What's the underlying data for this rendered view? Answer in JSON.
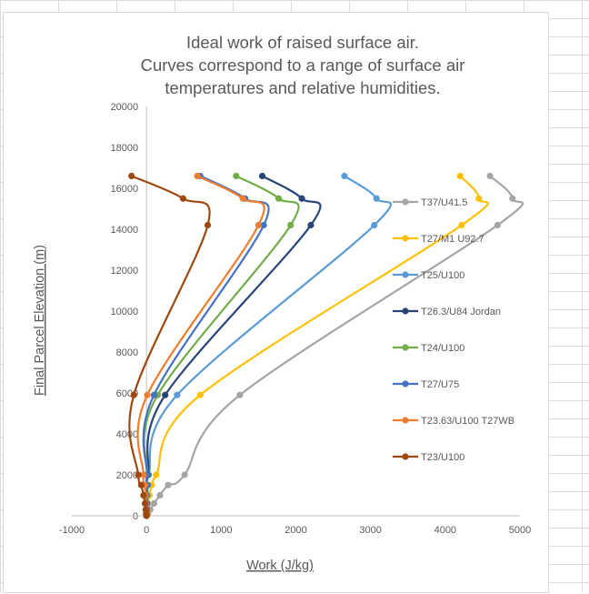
{
  "chart_data": {
    "type": "line",
    "title": [
      "Ideal work of raised surface air.",
      "Curves correspond to a range of surface air",
      "temperatures and relative humidities."
    ],
    "xlabel": "Work (J/kg)",
    "ylabel": "Final Parcel Elevation (m)",
    "xlim": [
      -1000,
      5000
    ],
    "ylim": [
      0,
      20000
    ],
    "x_ticks": [
      -1000,
      0,
      1000,
      2000,
      3000,
      4000,
      5000
    ],
    "y_ticks": [
      0,
      2000,
      4000,
      6000,
      8000,
      10000,
      12000,
      14000,
      16000,
      18000,
      20000
    ],
    "legend_position": "right",
    "series": [
      {
        "name": "T37/U41.5",
        "color": "#a5a5a5",
        "points": [
          [
            0,
            0
          ],
          [
            20,
            100
          ],
          [
            50,
            300
          ],
          [
            100,
            600
          ],
          [
            180,
            1000
          ],
          [
            290,
            1500
          ],
          [
            510,
            2000
          ],
          [
            1250,
            5900
          ],
          [
            4700,
            14200
          ],
          [
            4900,
            15500
          ],
          [
            4600,
            16600
          ]
        ]
      },
      {
        "name": "T27/M1 U92.7",
        "color": "#ffc000",
        "points": [
          [
            0,
            0
          ],
          [
            10,
            100
          ],
          [
            15,
            300
          ],
          [
            20,
            600
          ],
          [
            40,
            1000
          ],
          [
            70,
            1500
          ],
          [
            130,
            2000
          ],
          [
            720,
            5900
          ],
          [
            4220,
            14200
          ],
          [
            4450,
            15500
          ],
          [
            4200,
            16600
          ]
        ]
      },
      {
        "name": "T25/U100",
        "color": "#5b9bd5",
        "points": [
          [
            0,
            0
          ],
          [
            5,
            100
          ],
          [
            5,
            300
          ],
          [
            10,
            600
          ],
          [
            10,
            1000
          ],
          [
            20,
            1500
          ],
          [
            30,
            2000
          ],
          [
            410,
            5900
          ],
          [
            3050,
            14200
          ],
          [
            3080,
            15500
          ],
          [
            2650,
            16600
          ]
        ]
      },
      {
        "name": "T26.3/U84 Jordan",
        "color": "#264478",
        "points": [
          [
            0,
            0
          ],
          [
            0,
            100
          ],
          [
            5,
            300
          ],
          [
            5,
            600
          ],
          [
            5,
            1000
          ],
          [
            10,
            1500
          ],
          [
            20,
            2000
          ],
          [
            250,
            5900
          ],
          [
            2200,
            14200
          ],
          [
            2080,
            15500
          ],
          [
            1550,
            16600
          ]
        ]
      },
      {
        "name": "T24/U100",
        "color": "#70ad47",
        "points": [
          [
            0,
            0
          ],
          [
            0,
            100
          ],
          [
            0,
            300
          ],
          [
            0,
            600
          ],
          [
            5,
            1000
          ],
          [
            5,
            1500
          ],
          [
            10,
            2000
          ],
          [
            150,
            5900
          ],
          [
            1930,
            14200
          ],
          [
            1770,
            15500
          ],
          [
            1200,
            16600
          ]
        ]
      },
      {
        "name": "T27/U75",
        "color": "#4472c4",
        "points": [
          [
            0,
            0
          ],
          [
            0,
            100
          ],
          [
            0,
            300
          ],
          [
            0,
            600
          ],
          [
            0,
            1000
          ],
          [
            5,
            1500
          ],
          [
            5,
            2000
          ],
          [
            100,
            5900
          ],
          [
            1570,
            14200
          ],
          [
            1320,
            15500
          ],
          [
            720,
            16600
          ]
        ]
      },
      {
        "name": "T23.63/U100 T27WB",
        "color": "#ed7d31",
        "points": [
          [
            0,
            0
          ],
          [
            0,
            100
          ],
          [
            -5,
            300
          ],
          [
            -10,
            600
          ],
          [
            -15,
            1000
          ],
          [
            -20,
            1500
          ],
          [
            -40,
            2000
          ],
          [
            10,
            5900
          ],
          [
            1500,
            14200
          ],
          [
            1290,
            15500
          ],
          [
            680,
            16600
          ]
        ]
      },
      {
        "name": "T23/U100",
        "color": "#9e480e",
        "points": [
          [
            0,
            0
          ],
          [
            -5,
            100
          ],
          [
            -10,
            300
          ],
          [
            -20,
            600
          ],
          [
            -40,
            1000
          ],
          [
            -70,
            1500
          ],
          [
            -110,
            2000
          ],
          [
            -170,
            5900
          ],
          [
            820,
            14200
          ],
          [
            490,
            15500
          ],
          [
            -200,
            16600
          ]
        ]
      }
    ]
  }
}
